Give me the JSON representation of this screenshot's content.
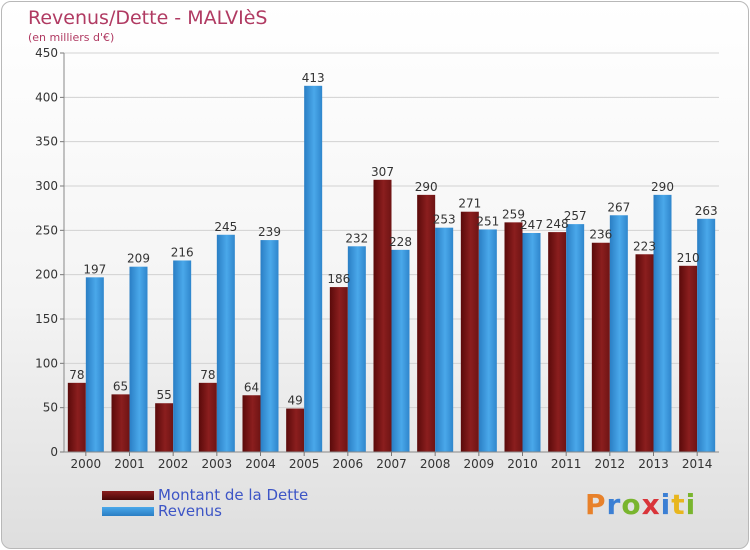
{
  "chart_data": {
    "type": "bar",
    "title": "Revenus/Dette - MALVIèS",
    "subtitle": "(en milliers d'€)",
    "categories": [
      "2000",
      "2001",
      "2002",
      "2003",
      "2004",
      "2005",
      "2006",
      "2007",
      "2008",
      "2009",
      "2010",
      "2011",
      "2012",
      "2013",
      "2014"
    ],
    "series": [
      {
        "name": "Montant de la Dette",
        "color": "#8b1e1e",
        "values": [
          78,
          65,
          55,
          78,
          64,
          49,
          186,
          307,
          290,
          271,
          259,
          248,
          236,
          223,
          210
        ]
      },
      {
        "name": "Revenus",
        "color": "#3b9be0",
        "values": [
          197,
          209,
          216,
          245,
          239,
          413,
          232,
          228,
          253,
          251,
          247,
          257,
          267,
          290,
          263
        ]
      }
    ],
    "ylim": [
      0,
      450
    ],
    "yticks": [
      0,
      50,
      100,
      150,
      200,
      250,
      300,
      350,
      400,
      450
    ],
    "grid": true,
    "legend_position": "bottom-left"
  },
  "logo": {
    "letters": [
      {
        "ch": "P",
        "color": "#e8812a"
      },
      {
        "ch": "r",
        "color": "#3b7fd4"
      },
      {
        "ch": "o",
        "color": "#79b52e"
      },
      {
        "ch": "x",
        "color": "#d9343a"
      },
      {
        "ch": "i",
        "color": "#3b7fd4"
      },
      {
        "ch": "t",
        "color": "#e8b61e"
      },
      {
        "ch": "i",
        "color": "#79b52e"
      }
    ]
  }
}
